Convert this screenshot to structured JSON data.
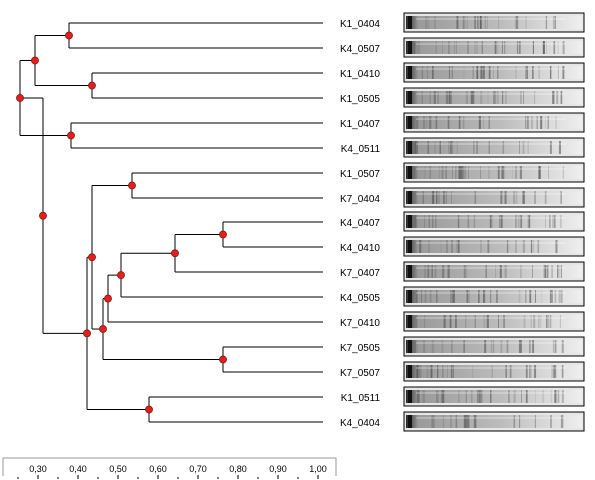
{
  "dendrogram": {
    "leaves": [
      "K1_0404",
      "K4_0507",
      "K1_0410",
      "K1_0505",
      "K1_0407",
      "K4_0511",
      "K1_0507",
      "K7_0404",
      "K4_0407",
      "K4_0410",
      "K7_0407",
      "K4_0505",
      "K7_0410",
      "K7_0505",
      "K7_0507",
      "K1_0511",
      "K4_0404"
    ],
    "scale_ticks": [
      "0,30",
      "0,40",
      "0,50",
      "0,60",
      "0,70",
      "0,80",
      "0,90",
      "1,00"
    ],
    "node_color": "#e0201c",
    "line_color": "#000000",
    "lane_background": "#e6e6e6",
    "lane_band_color": "#555555"
  }
}
